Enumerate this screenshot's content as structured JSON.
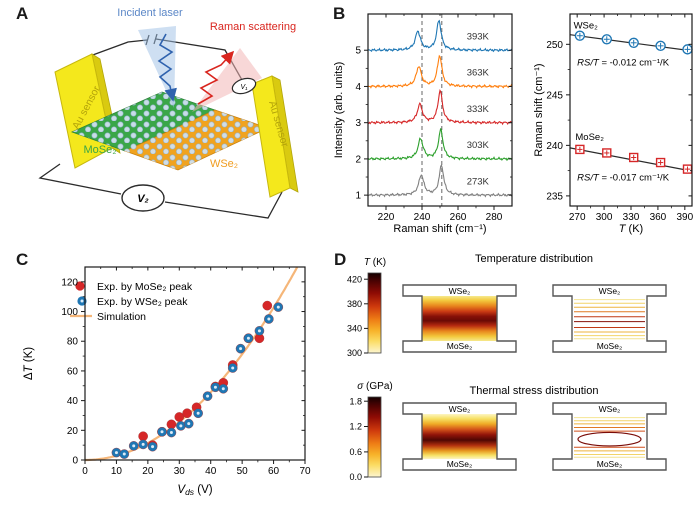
{
  "panels": {
    "a": {
      "label": "A",
      "incident_laser": "Incident laser",
      "raman_scattering": "Raman scattering",
      "au_sensor_left": "Au sensor",
      "au_sensor_right": "Au sensor",
      "mose2": "MoSe₂",
      "wse2": "WSe₂",
      "v1": "V₁",
      "v2": "V₂"
    },
    "b": {
      "label": "B"
    },
    "c": {
      "label": "C"
    },
    "d": {
      "label": "D"
    }
  },
  "chart_data": [
    {
      "id": "raman_spectra",
      "type": "line",
      "xlabel": "Raman shift (cm⁻¹)",
      "ylabel": "Intensity (arb. units)",
      "xlim": [
        210,
        290
      ],
      "ylim": [
        0.7,
        6.0
      ],
      "xticks": [
        220,
        240,
        260,
        280
      ],
      "yticks": [
        1,
        2,
        3,
        4,
        5
      ],
      "dashed_lines_x": [
        240,
        251
      ],
      "series": [
        {
          "name": "393K",
          "color": "#1f77b4",
          "baseline": 5,
          "peaks": [
            {
              "center": 237.7,
              "amp": 0.52
            },
            {
              "center": 249.4,
              "amp": 0.82
            }
          ]
        },
        {
          "name": "363K",
          "color": "#ff7f0e",
          "baseline": 4,
          "peaks": [
            {
              "center": 238.2,
              "amp": 0.55
            },
            {
              "center": 249.8,
              "amp": 0.85
            }
          ]
        },
        {
          "name": "333K",
          "color": "#d62728",
          "baseline": 3,
          "peaks": [
            {
              "center": 238.8,
              "amp": 0.5
            },
            {
              "center": 250.1,
              "amp": 0.88
            }
          ]
        },
        {
          "name": "303K",
          "color": "#2ca02c",
          "baseline": 2,
          "peaks": [
            {
              "center": 239.2,
              "amp": 0.55
            },
            {
              "center": 250.4,
              "amp": 0.8
            }
          ]
        },
        {
          "name": "273K",
          "color": "#808080",
          "baseline": 1,
          "peaks": [
            {
              "center": 239.6,
              "amp": 0.55
            },
            {
              "center": 250.8,
              "amp": 0.82
            }
          ]
        }
      ]
    },
    {
      "id": "raman_shift_vs_temperature",
      "type": "scatter",
      "xlabel_italic": "T",
      "xlabel_rest": " (K)",
      "ylabel": "Raman shift (cm⁻¹)",
      "xlim": [
        262,
        398
      ],
      "ylim": [
        234,
        253
      ],
      "xticks": [
        270,
        300,
        330,
        360,
        390
      ],
      "yticks": [
        235,
        240,
        245,
        250
      ],
      "series": [
        {
          "name": "WSe₂",
          "marker": "circle-plus",
          "color": "#1f77b4",
          "x": [
            273,
            303,
            333,
            363,
            393
          ],
          "y": [
            250.85,
            250.5,
            250.15,
            249.85,
            249.5
          ],
          "fit": [
            [
              262,
              250.95
            ],
            [
              398,
              249.35
            ]
          ],
          "slope_label_italic": "RS/T",
          "slope_label_rest": " = -0.012 cm⁻¹/K"
        },
        {
          "name": "MoSe₂",
          "marker": "square-plus",
          "color": "#d62728",
          "x": [
            273,
            303,
            333,
            363,
            393
          ],
          "y": [
            239.6,
            239.25,
            238.8,
            238.3,
            237.65
          ],
          "fit": [
            [
              262,
              239.75
            ],
            [
              398,
              237.45
            ]
          ],
          "slope_label_italic": "RS/T",
          "slope_label_rest": " = -0.017 cm⁻¹/K"
        }
      ]
    },
    {
      "id": "delta_t_vs_vds",
      "type": "scatter",
      "xlabel_sym": "V",
      "xlabel_sub": "ds",
      "xlabel_unit": " (V)",
      "ylabel_delta": "Δ",
      "ylabel_italic": "T",
      "ylabel_unit": " (K)",
      "xlim": [
        0,
        70
      ],
      "ylim": [
        0,
        130
      ],
      "xticks": [
        0,
        10,
        20,
        30,
        40,
        50,
        60,
        70
      ],
      "yticks": [
        0,
        20,
        40,
        60,
        80,
        100,
        120
      ],
      "legend": [
        {
          "label": "Exp. by MoSe₂ peak",
          "marker": "circle",
          "color": "#d62728"
        },
        {
          "label": "Exp. by WSe₂ peak",
          "marker": "circle-dot",
          "color": "#1f77b4"
        },
        {
          "label": "Simulation",
          "marker": "line",
          "color": "#f5b679"
        }
      ],
      "series": [
        {
          "name": "Exp. by MoSe₂ peak",
          "color": "#d62728",
          "marker": "circle",
          "x": [
            18.5,
            21.5,
            24.5,
            27.5,
            30,
            32.5,
            35.5,
            41.5,
            44,
            47,
            52,
            55.5,
            58
          ],
          "y": [
            16,
            10,
            19,
            24,
            29,
            31.5,
            35.5,
            49.5,
            52,
            64,
            82,
            82,
            104
          ]
        },
        {
          "name": "Exp. by WSe₂ peak",
          "color": "#1f77b4",
          "marker": "circle-dot",
          "x": [
            10,
            12.5,
            15.5,
            18.5,
            21.5,
            24.5,
            27.5,
            30.5,
            33,
            36,
            39,
            41.5,
            44,
            47,
            49.5,
            52,
            55.5,
            58.5,
            61.5
          ],
          "y": [
            5,
            4,
            9.5,
            10.5,
            9,
            19,
            18.5,
            23,
            24.5,
            31.5,
            43,
            49,
            48,
            62,
            75,
            82,
            87,
            95,
            103
          ]
        },
        {
          "name": "Simulation",
          "marker": "line",
          "color": "#f5b679",
          "curve_coeff": 0.0285,
          "curve_exponent": 2
        }
      ]
    },
    {
      "id": "comsol_distributions",
      "type": "heatmap",
      "rows": [
        {
          "title": "Temperature distribution",
          "colorbar": {
            "sym": "T",
            "unit": " (K)",
            "ticks": [
              "420",
              "380",
              "340",
              "300"
            ],
            "vmin": 300,
            "vmax": 430
          },
          "top_label": "WSe₂",
          "bottom_label": "MoSe₂"
        },
        {
          "title": "Thermal stress distribution",
          "colorbar": {
            "sym": "σ",
            "unit": " (GPa)",
            "ticks": [
              "1.8",
              "1.2",
              "0.6",
              "0.0"
            ],
            "vmin": 0,
            "vmax": 1.9
          },
          "top_label": "WSe₂",
          "bottom_label": "MoSe₂"
        }
      ]
    }
  ]
}
